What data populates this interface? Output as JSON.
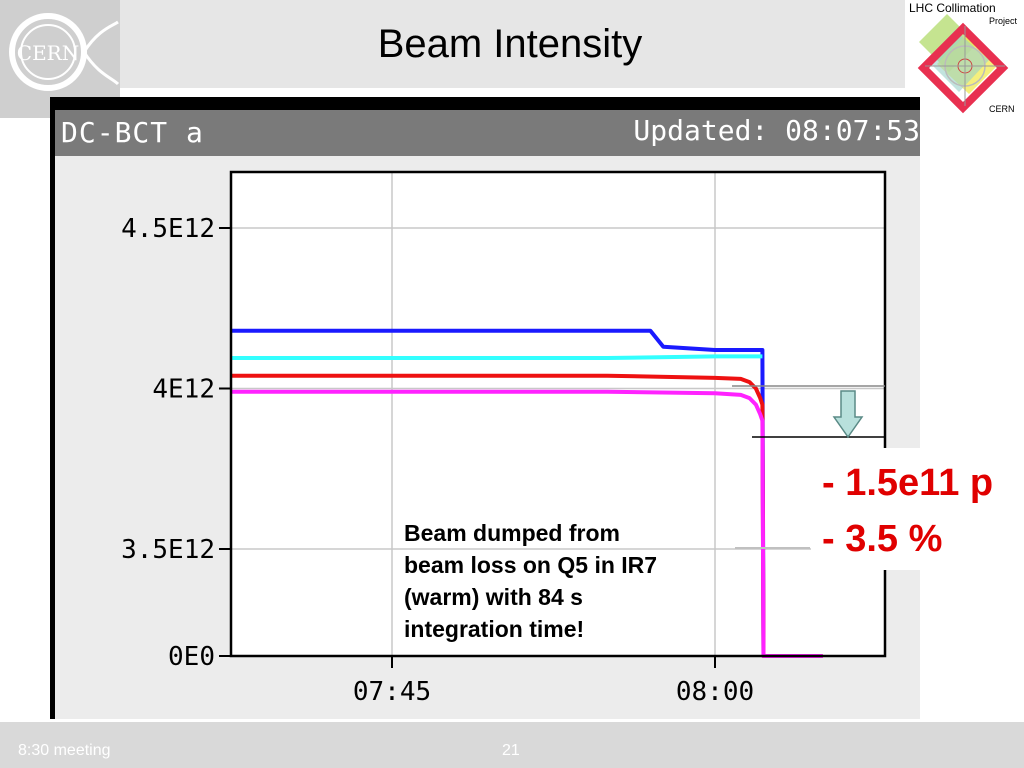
{
  "slide": {
    "title": "Beam Intensity",
    "logo_left_text": "CERN",
    "logo_right": {
      "line1": "LHC Collimation",
      "line2": "Project",
      "line3": "CERN"
    },
    "footer": {
      "meeting": "8:30 meeting",
      "page": "21"
    }
  },
  "screen": {
    "header_left": "DC-BCT a",
    "header_right": "Updated: 08:07:53"
  },
  "annotation": {
    "note_lines": [
      "Beam dumped from",
      "beam loss on Q5 in IR7",
      "(warm) with 84 s",
      "integration time!"
    ],
    "callout_lines": [
      "- 1.5e11 p",
      "- 3.5 %"
    ]
  },
  "colors": {
    "series_blue": "#1a1aff",
    "series_cyan": "#33ffff",
    "series_red": "#ee1111",
    "series_magenta": "#ff22ff",
    "callout_red": "#e00000"
  },
  "chart_data": {
    "type": "line",
    "xlabel": "",
    "ylabel": "",
    "x_ticks": [
      {
        "value": 45,
        "label": "07:45"
      },
      {
        "value": 60,
        "label": "08:00"
      }
    ],
    "y_ticks": [
      {
        "value": 0,
        "label": "0E0"
      },
      {
        "value": 3500000000000.0,
        "label": "3.5E12"
      },
      {
        "value": 4000000000000.0,
        "label": "4E12"
      },
      {
        "value": 4500000000000.0,
        "label": "4.5E12"
      }
    ],
    "grid": true,
    "series": [
      {
        "color": "#1a1aff",
        "x": [
          37.5,
          57.0,
          57.6,
          60.0,
          62.2,
          62.25
        ],
        "y": [
          4180000000000.0,
          4180000000000.0,
          4130000000000.0,
          4120000000000.0,
          4120000000000.0,
          0
        ]
      },
      {
        "color": "#33ffff",
        "x": [
          37.5,
          55.0,
          60.0,
          62.2
        ],
        "y": [
          4095000000000.0,
          4095000000000.0,
          4100000000000.0,
          4100000000000.0
        ]
      },
      {
        "color": "#ee1111",
        "x": [
          37.5,
          55.0,
          60.0,
          61.2,
          61.6,
          61.9,
          62.1,
          62.2,
          62.25,
          65.0
        ],
        "y": [
          4040000000000.0,
          4040000000000.0,
          4033000000000.0,
          4030000000000.0,
          4020000000000.0,
          4000000000000.0,
          3970000000000.0,
          3950000000000.0,
          0,
          0
        ]
      },
      {
        "color": "#ff22ff",
        "x": [
          37.5,
          55.0,
          60.0,
          61.2,
          61.6,
          61.9,
          62.1,
          62.2,
          62.25,
          65.0
        ],
        "y": [
          3990000000000.0,
          3990000000000.0,
          3985000000000.0,
          3980000000000.0,
          3970000000000.0,
          3950000000000.0,
          3920000000000.0,
          3900000000000.0,
          0,
          0
        ]
      }
    ]
  }
}
